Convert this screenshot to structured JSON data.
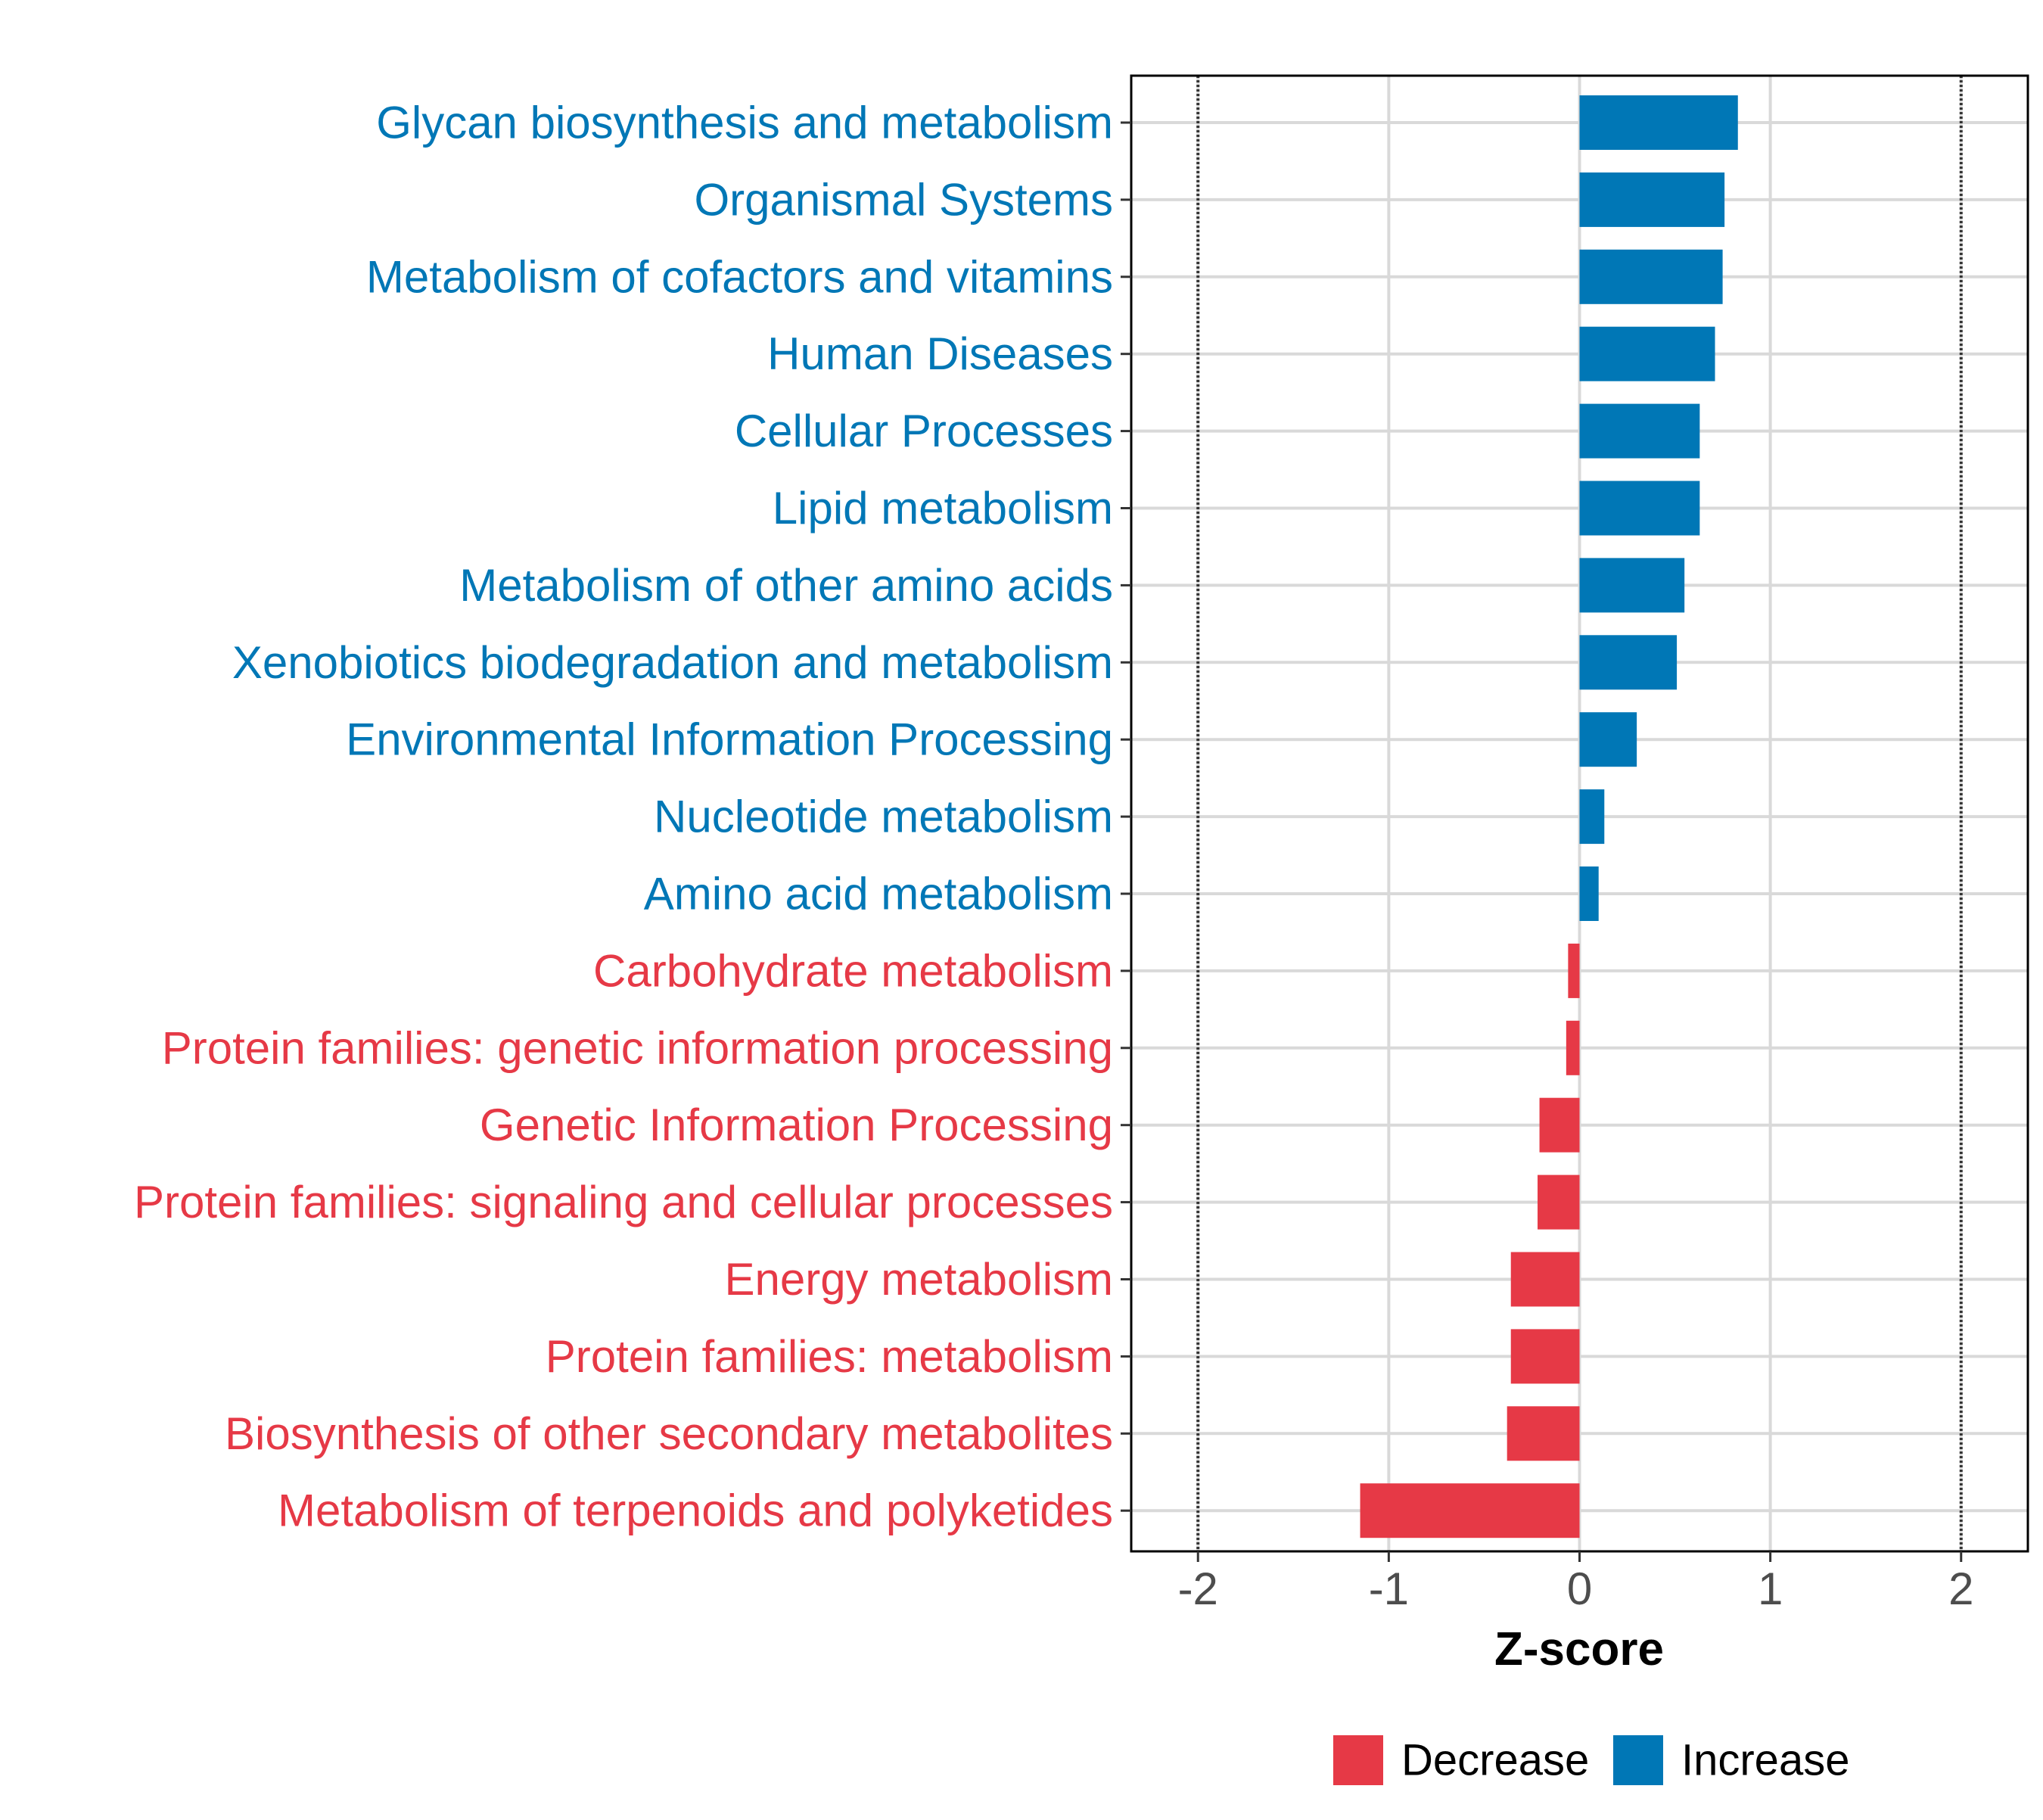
{
  "chart_data": {
    "type": "bar",
    "orientation": "horizontal",
    "title": "",
    "xlabel": "Z-score",
    "ylabel": "",
    "xlim": [
      -2.35,
      2.35
    ],
    "xticks": [
      -2,
      -1,
      0,
      1,
      2
    ],
    "xtick_labels": [
      "-2",
      "-1",
      "0",
      "1",
      "2"
    ],
    "reference_lines": [
      -2,
      2
    ],
    "grid": true,
    "legend_position": "bottom",
    "legend": [
      {
        "name": "Decrease",
        "color": "#E63946"
      },
      {
        "name": "Increase",
        "color": "#0077B6"
      }
    ],
    "categories": [
      "Glycan biosynthesis and metabolism",
      "Organismal Systems",
      "Metabolism of cofactors and vitamins",
      "Human Diseases",
      "Cellular Processes",
      "Lipid metabolism",
      "Metabolism of other amino acids",
      "Xenobiotics biodegradation and metabolism",
      "Environmental Information Processing",
      "Nucleotide metabolism",
      "Amino acid metabolism",
      "Carbohydrate metabolism",
      "Protein families: genetic information processing",
      "Genetic Information Processing",
      "Protein families: signaling and cellular processes",
      "Energy metabolism",
      "Protein families: metabolism",
      "Biosynthesis of other secondary metabolites",
      "Metabolism of terpenoids and polyketides"
    ],
    "values": [
      0.83,
      0.76,
      0.75,
      0.71,
      0.63,
      0.63,
      0.55,
      0.51,
      0.3,
      0.13,
      0.1,
      -0.06,
      -0.07,
      -0.21,
      -0.22,
      -0.36,
      -0.36,
      -0.38,
      -1.15
    ],
    "groups": [
      "Increase",
      "Increase",
      "Increase",
      "Increase",
      "Increase",
      "Increase",
      "Increase",
      "Increase",
      "Increase",
      "Increase",
      "Increase",
      "Decrease",
      "Decrease",
      "Decrease",
      "Decrease",
      "Decrease",
      "Decrease",
      "Decrease",
      "Decrease"
    ]
  }
}
